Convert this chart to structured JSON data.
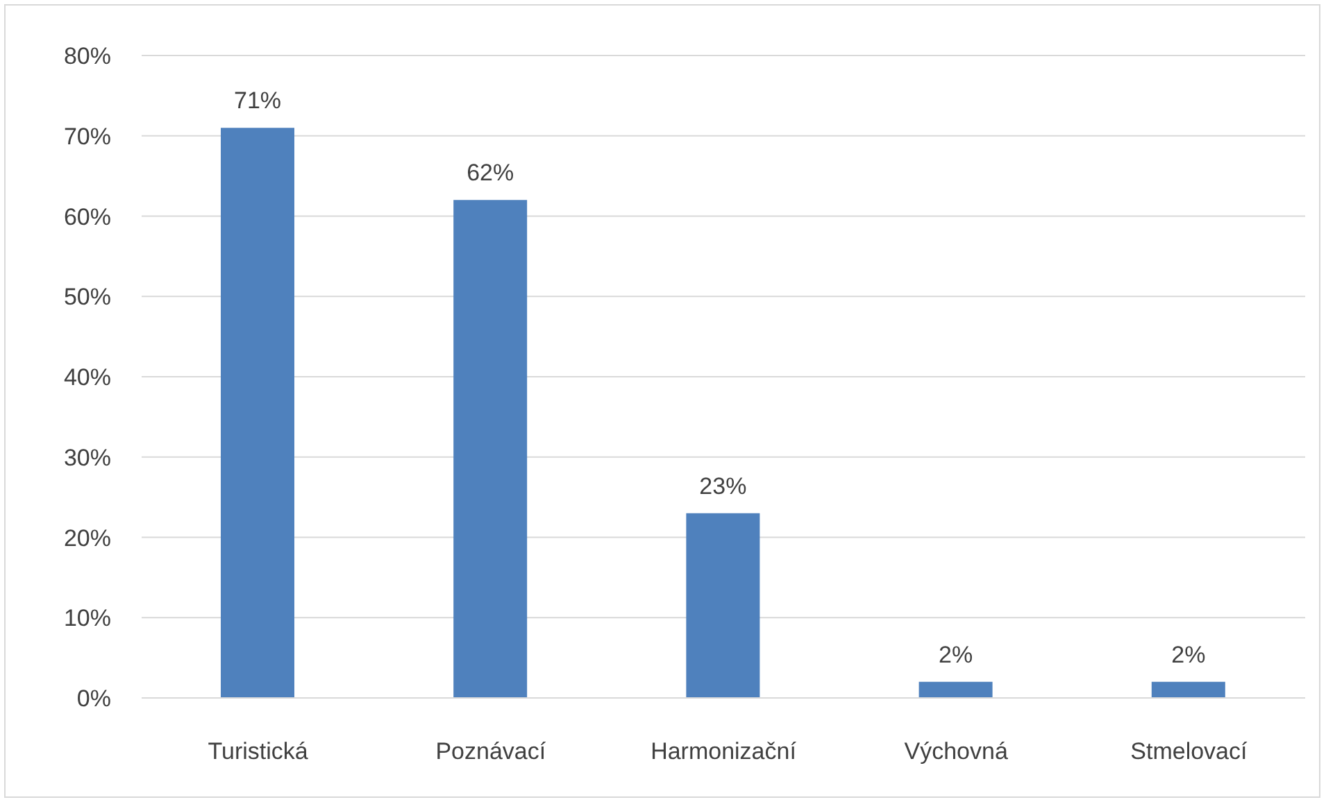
{
  "chart_data": {
    "type": "bar",
    "categories": [
      "Turistická",
      "Poznávací",
      "Harmonizační",
      "Výchovná",
      "Stmelovací"
    ],
    "values": [
      71,
      62,
      23,
      2,
      2
    ],
    "value_labels": [
      "71%",
      "62%",
      "23%",
      "2%",
      "2%"
    ],
    "color": "#4f81bd",
    "ylim": [
      0,
      80
    ],
    "yticks": [
      {
        "value": 0,
        "label": "0%"
      },
      {
        "value": 10,
        "label": "10%"
      },
      {
        "value": 20,
        "label": "20%"
      },
      {
        "value": 30,
        "label": "30%"
      },
      {
        "value": 40,
        "label": "40%"
      },
      {
        "value": 50,
        "label": "50%"
      },
      {
        "value": 60,
        "label": "60%"
      },
      {
        "value": 70,
        "label": "70%"
      },
      {
        "value": 80,
        "label": "80%"
      }
    ],
    "grid": "y"
  }
}
